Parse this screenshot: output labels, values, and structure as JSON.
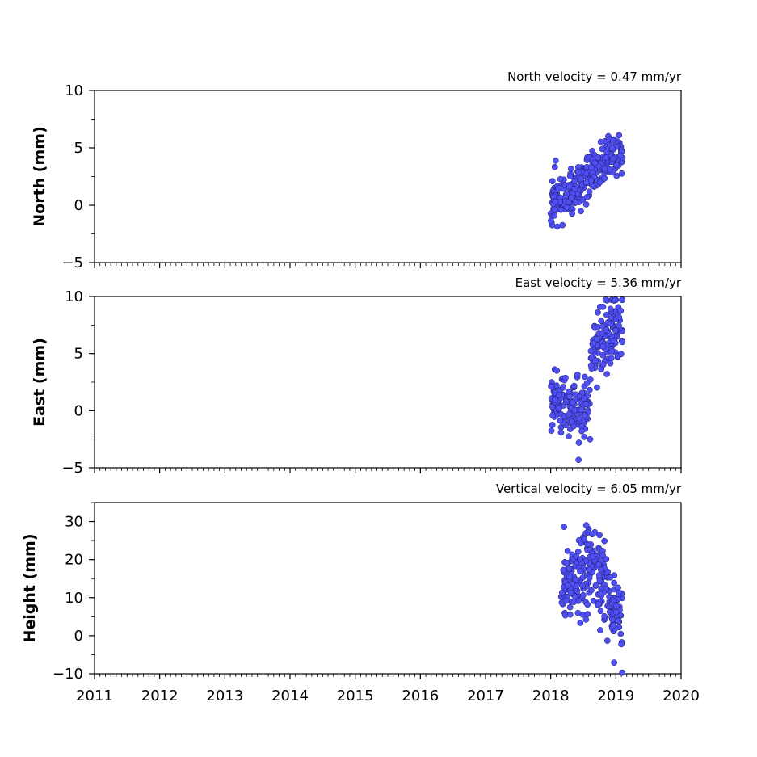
{
  "chart_data": [
    {
      "type": "scatter",
      "title": "North velocity = 0.47 mm/yr",
      "ylabel": "North (mm)",
      "xlim": [
        2011,
        2020
      ],
      "ylim": [
        -5,
        10
      ],
      "yticks": [
        -5,
        0,
        5,
        10
      ],
      "ytick_labels": [
        "−5",
        "0",
        "5",
        "10"
      ],
      "x_range_of_data": [
        2018.0,
        2019.1
      ],
      "trend": {
        "start": 0.0,
        "end": 4.8
      },
      "scatter_spread": 1.0,
      "n_points": 300,
      "seed": 11,
      "marker_color": "#4f4ff5"
    },
    {
      "type": "scatter",
      "title": "East velocity = 5.36 mm/yr",
      "ylabel": "East (mm)",
      "xlim": [
        2011,
        2020
      ],
      "ylim": [
        -5,
        10
      ],
      "yticks": [
        -5,
        0,
        5,
        10
      ],
      "ytick_labels": [
        "−5",
        "0",
        "5",
        "10"
      ],
      "x_range_of_data": [
        2018.0,
        2019.1
      ],
      "trend": {
        "start": 1.0,
        "end": 8.0
      },
      "scatter_spread": 1.3,
      "n_points": 300,
      "seed": 23,
      "marker_color": "#4f4ff5"
    },
    {
      "type": "scatter",
      "title": "Vertical velocity = 6.05 mm/yr",
      "ylabel": "Height (mm)",
      "xlim": [
        2011,
        2020
      ],
      "ylim": [
        -10,
        35
      ],
      "yticks": [
        -10,
        0,
        10,
        20,
        30
      ],
      "ytick_labels": [
        "−10",
        "0",
        "10",
        "20",
        "30"
      ],
      "x_range_of_data": [
        2018.15,
        2019.1
      ],
      "trend": {
        "start": 12.0,
        "end": 10.0
      },
      "scatter_spread": 5.5,
      "n_points": 260,
      "seed": 37,
      "marker_color": "#4f4ff5",
      "xticks": [
        2011,
        2012,
        2013,
        2014,
        2015,
        2016,
        2017,
        2018,
        2019,
        2020
      ],
      "xtick_labels": [
        "2011",
        "2012",
        "2013",
        "2014",
        "2015",
        "2016",
        "2017",
        "2018",
        "2019",
        "2020"
      ]
    }
  ]
}
